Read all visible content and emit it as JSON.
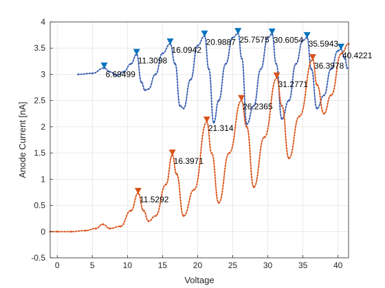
{
  "chart_data": {
    "type": "line",
    "title": "",
    "xlabel": "Voltage",
    "ylabel": "Anode Current [nA]",
    "xlim": [
      -1,
      41.5
    ],
    "ylim": [
      -0.5,
      4
    ],
    "xticks": [
      0,
      5,
      10,
      15,
      20,
      25,
      30,
      35,
      40
    ],
    "xtick_labels": [
      "0",
      "5",
      "10",
      "15",
      "20",
      "25",
      "30",
      "35",
      "40"
    ],
    "yticks": [
      -0.5,
      0,
      0.5,
      1,
      1.5,
      2,
      2.5,
      3,
      3.5,
      4
    ],
    "ytick_labels": [
      "-0.5",
      "0",
      "0.5",
      "1",
      "1.5",
      "2",
      "2.5",
      "3",
      "3.5",
      "4"
    ],
    "grid": true,
    "legend": "none",
    "colors": {
      "series_blue": "#3a5fb0",
      "series_red": "#d95319",
      "marker_blue": "#0072bd",
      "marker_red": "#d95319",
      "grid": "#dcdcdc",
      "axis": "#262626"
    },
    "series": [
      {
        "color": "#3a5fb0",
        "x": [
          3.0,
          5.0,
          6.69,
          7.5,
          8.5,
          9.5,
          10.5,
          11.31,
          12.0,
          12.5,
          13.0,
          14.0,
          15.0,
          16.09,
          16.8,
          17.5,
          18.0,
          19.0,
          20.0,
          20.99,
          21.6,
          22.3,
          23.0,
          24.0,
          25.0,
          25.76,
          26.3,
          27.0,
          28.0,
          29.0,
          30.0,
          30.6,
          31.2,
          32.0,
          33.0,
          34.0,
          35.0,
          35.59,
          36.2,
          37.0,
          38.0,
          39.0,
          40.0,
          40.42,
          41.0,
          41.3
        ],
        "y": [
          3.0,
          3.02,
          3.12,
          3.05,
          2.98,
          3.05,
          3.2,
          3.38,
          2.85,
          2.7,
          2.72,
          3.0,
          3.4,
          3.58,
          3.2,
          2.4,
          2.35,
          2.9,
          3.55,
          3.73,
          3.1,
          2.08,
          2.5,
          3.2,
          3.7,
          3.78,
          3.3,
          2.05,
          2.4,
          3.1,
          3.7,
          3.77,
          3.2,
          2.15,
          2.5,
          3.2,
          3.65,
          3.7,
          3.1,
          2.35,
          2.6,
          3.1,
          3.45,
          3.48,
          3.3,
          3.12
        ]
      },
      {
        "color": "#d95319",
        "x": [
          -1,
          0,
          2,
          4,
          5.5,
          6.5,
          7.5,
          9.0,
          10.5,
          11.53,
          12.3,
          13.0,
          14.0,
          15.5,
          16.4,
          17.0,
          18.0,
          19.5,
          21.31,
          22.0,
          23.0,
          24.5,
          26.24,
          27.0,
          28.0,
          29.5,
          31.28,
          32.0,
          33.0,
          34.5,
          36.4,
          37.0,
          38.0,
          39.0,
          40.5,
          41.5
        ],
        "y": [
          0.0,
          0.0,
          0.0,
          0.02,
          0.06,
          0.14,
          0.06,
          0.1,
          0.4,
          0.73,
          0.4,
          0.2,
          0.3,
          0.9,
          1.46,
          1.1,
          0.3,
          0.8,
          2.09,
          1.5,
          0.55,
          1.5,
          2.5,
          2.0,
          0.85,
          1.8,
          2.93,
          2.4,
          1.4,
          2.2,
          3.28,
          2.8,
          2.25,
          2.6,
          3.4,
          3.58
        ]
      }
    ],
    "peaks": [
      {
        "series": 0,
        "x": 6.69499,
        "y": 3.12,
        "label": "6.69499"
      },
      {
        "series": 0,
        "x": 11.3098,
        "y": 3.38,
        "label": "11.3098"
      },
      {
        "series": 0,
        "x": 16.0942,
        "y": 3.58,
        "label": "16.0942"
      },
      {
        "series": 0,
        "x": 20.9887,
        "y": 3.73,
        "label": "20.9887"
      },
      {
        "series": 0,
        "x": 25.7575,
        "y": 3.78,
        "label": "25.7575"
      },
      {
        "series": 0,
        "x": 30.6054,
        "y": 3.77,
        "label": "30.6054"
      },
      {
        "series": 0,
        "x": 35.5943,
        "y": 3.7,
        "label": "35.5943"
      },
      {
        "series": 0,
        "x": 40.4221,
        "y": 3.48,
        "label": "40.4221"
      },
      {
        "series": 1,
        "x": 11.5292,
        "y": 0.73,
        "label": "11.5292"
      },
      {
        "series": 1,
        "x": 16.3971,
        "y": 1.46,
        "label": "16.3971"
      },
      {
        "series": 1,
        "x": 21.314,
        "y": 2.09,
        "label": "21.314"
      },
      {
        "series": 1,
        "x": 26.2365,
        "y": 2.5,
        "label": "26.2365"
      },
      {
        "series": 1,
        "x": 31.2771,
        "y": 2.93,
        "label": "31.2771"
      },
      {
        "series": 1,
        "x": 36.3978,
        "y": 3.28,
        "label": "36.3978"
      }
    ]
  }
}
